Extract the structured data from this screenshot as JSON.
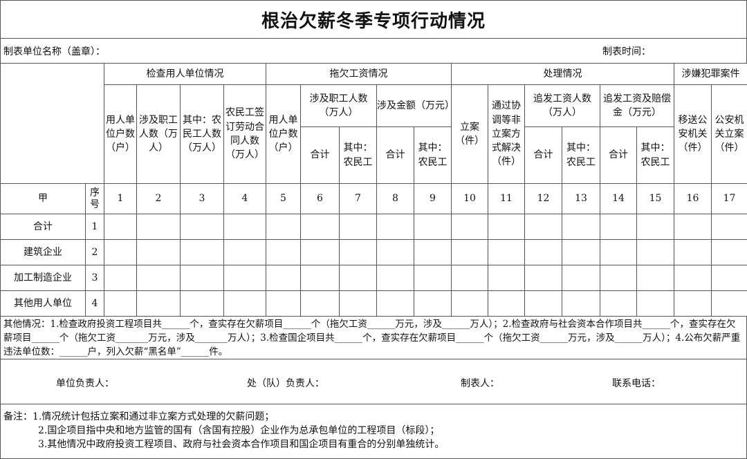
{
  "title": "根治欠薪冬季专项行动情况",
  "info": {
    "unit_label": "制表单位名称（盖章）：",
    "time_label": "制表时间："
  },
  "groups": [
    "检查用人单位情况",
    "拖欠工资情况",
    "处理情况",
    "涉嫌犯罪案件"
  ],
  "headers": {
    "c1": "用人单位户数（户）",
    "c2": "涉及职工人数（万人）",
    "c3": "其中：农民工人数（万人）",
    "c4": "农民工签订劳动合同人数（万人）",
    "c5": "用人单位户数（户）",
    "c67": "涉及职工人数（万人）",
    "c89": "涉及金额（万元）",
    "c10": "立案（件）",
    "c11": "通过协调等非立案方式解决（件）",
    "c1213": "追发工资人数（万人）",
    "c1415": "追发工资及赔偿金（万元）",
    "c16": "移送公安机关（件）",
    "c17": "公安机关立案（件）",
    "total": "合计",
    "migrant": "其中：农民工"
  },
  "index_row": {
    "label": "甲",
    "seq": "序号",
    "numbers": [
      "1",
      "2",
      "3",
      "4",
      "5",
      "6",
      "7",
      "8",
      "9",
      "10",
      "11",
      "12",
      "13",
      "14",
      "15",
      "16",
      "17"
    ]
  },
  "rows": [
    {
      "label": "合计",
      "seq": "1"
    },
    {
      "label": "建筑企业",
      "seq": "2"
    },
    {
      "label": "加工制造企业",
      "seq": "3"
    },
    {
      "label": "其他用人单位",
      "seq": "4"
    }
  ],
  "other": "其他情况：1.检查政府投资工程项目共______个，查实存在欠薪项目______个（拖欠工资______万元，涉及______万人）；2.检查政府与社会资本合作项目共______个，查实存在欠薪项目______个（拖欠工资_______万元，涉及_______万人）；3.检查国企项目共______个，查实存在欠薪项目______个（拖欠工资______万元，涉及______万人）；4.公布欠薪严重违法单位数：______户，列入欠薪“黑名单”______件。",
  "signatures": [
    "单位负责人：",
    "处（队）负责人：",
    "制表人：",
    "联系电话："
  ],
  "notes": [
    "备注：1.情况统计包括立案和通过非立案方式处理的欠薪问题；",
    "2.国企项目指中央和地方监管的国有（含国有控股）企业作为总承包单位的工程项目（标段）；",
    "3.其他情况中政府投资工程项目、政府与社会资本合作项目和国企项目有重合的分别单独统计。"
  ]
}
